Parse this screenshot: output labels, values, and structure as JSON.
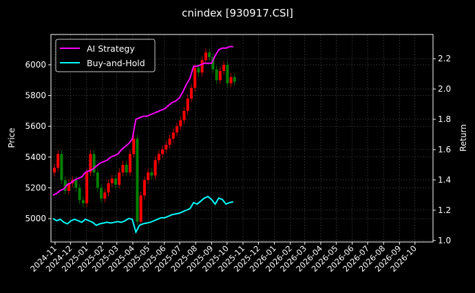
{
  "chart_data": {
    "type": "line",
    "title": "cnindex [930917.CSI]",
    "ylabel": "Price",
    "ylabel_right": "Return",
    "ylim": [
      4848,
      6197
    ],
    "ylim_right": [
      0.99,
      2.36
    ],
    "xlim": [
      "2024-10-24",
      "2026-11-05"
    ],
    "grid": true,
    "legend_position": "top-left",
    "y_ticks": [
      5000,
      5200,
      5400,
      5600,
      5800,
      6000
    ],
    "y_ticks_right": [
      "1.0",
      "1.2",
      "1.4",
      "1.6",
      "1.8",
      "2.0",
      "2.2"
    ],
    "x_ticks": [
      "2024-11",
      "2024-12",
      "2025-01",
      "2025-02",
      "2025-03",
      "2025-04",
      "2025-05",
      "2025-06",
      "2025-07",
      "2025-08",
      "2025-09",
      "2025-10",
      "2025-11",
      "2025-12",
      "2026-01",
      "2026-02",
      "2026-03",
      "2026-04",
      "2026-05",
      "2026-06",
      "2026-07",
      "2026-08",
      "2026-09",
      "2026-10"
    ],
    "dates": [
      "2024-10-28",
      "2024-11-04",
      "2024-11-11",
      "2024-11-18",
      "2024-11-25",
      "2024-12-02",
      "2024-12-09",
      "2024-12-16",
      "2024-12-23",
      "2024-12-30",
      "2025-01-06",
      "2025-01-13",
      "2025-01-20",
      "2025-01-27",
      "2025-02-03",
      "2025-02-10",
      "2025-02-17",
      "2025-02-24",
      "2025-03-03",
      "2025-03-10",
      "2025-03-17",
      "2025-03-24",
      "2025-03-31",
      "2025-04-07",
      "2025-04-14",
      "2025-04-21",
      "2025-04-28",
      "2025-05-05",
      "2025-05-12",
      "2025-05-19",
      "2025-05-26",
      "2025-06-02",
      "2025-06-09",
      "2025-06-16",
      "2025-06-23",
      "2025-06-30",
      "2025-07-07",
      "2025-07-14",
      "2025-07-21",
      "2025-07-28",
      "2025-08-04",
      "2025-08-11",
      "2025-08-18",
      "2025-08-25",
      "2025-09-01",
      "2025-09-08",
      "2025-09-15",
      "2025-09-22",
      "2025-09-29",
      "2025-10-06",
      "2025-10-13"
    ],
    "price_close": [
      5330,
      5420,
      5250,
      5180,
      5230,
      5250,
      5200,
      5120,
      5100,
      5300,
      5420,
      5300,
      5200,
      5130,
      5170,
      5230,
      5260,
      5220,
      5300,
      5350,
      5300,
      5420,
      5520,
      4980,
      5150,
      5250,
      5300,
      5280,
      5380,
      5420,
      5450,
      5480,
      5520,
      5560,
      5600,
      5640,
      5700,
      5780,
      5850,
      5980,
      5950,
      6030,
      6080,
      6050,
      5970,
      5900,
      5960,
      6000,
      5880,
      5920,
      5890
    ],
    "series": [
      {
        "name": "AI Strategy",
        "axis": "right",
        "color": "#ff00ff",
        "values": [
          1.3,
          1.31,
          1.33,
          1.34,
          1.37,
          1.38,
          1.4,
          1.41,
          1.42,
          1.45,
          1.46,
          1.47,
          1.49,
          1.51,
          1.52,
          1.53,
          1.55,
          1.56,
          1.57,
          1.6,
          1.62,
          1.64,
          1.67,
          1.8,
          1.81,
          1.82,
          1.82,
          1.83,
          1.84,
          1.85,
          1.86,
          1.87,
          1.89,
          1.91,
          1.92,
          1.94,
          1.98,
          2.03,
          2.07,
          2.15,
          2.15,
          2.16,
          2.17,
          2.17,
          2.17,
          2.22,
          2.26,
          2.27,
          2.27,
          2.28,
          2.28
        ]
      },
      {
        "name": "Buy-and-Hold",
        "axis": "right",
        "color": "#00ffff",
        "values": [
          1.145,
          1.13,
          1.14,
          1.12,
          1.11,
          1.13,
          1.14,
          1.13,
          1.12,
          1.14,
          1.13,
          1.12,
          1.1,
          1.11,
          1.115,
          1.12,
          1.115,
          1.12,
          1.125,
          1.12,
          1.13,
          1.145,
          1.14,
          1.055,
          1.1,
          1.11,
          1.115,
          1.12,
          1.13,
          1.14,
          1.15,
          1.15,
          1.16,
          1.17,
          1.175,
          1.18,
          1.19,
          1.2,
          1.21,
          1.25,
          1.24,
          1.26,
          1.28,
          1.29,
          1.27,
          1.24,
          1.28,
          1.27,
          1.24,
          1.25,
          1.255
        ]
      }
    ],
    "candle_colors": {
      "up": "#ff0000",
      "down": "#008000"
    }
  }
}
